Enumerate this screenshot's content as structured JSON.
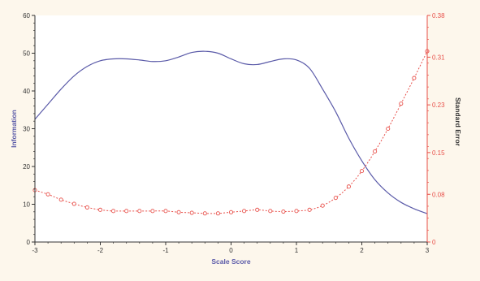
{
  "colors": {
    "background": "#fdf7ec",
    "plot_background": "#ffffff",
    "information": "#5a5aa8",
    "standard_error": "#e8504a",
    "axis": "#333333"
  },
  "chart_data": {
    "type": "line",
    "xlabel": "Scale Score",
    "ylabel_left": "Information",
    "ylabel_right": "Standard Error",
    "xlim": [
      -3,
      3
    ],
    "ylim_left": [
      0,
      60
    ],
    "ylim_right": [
      0,
      0.38
    ],
    "x_ticks": [
      -3,
      -2,
      -1,
      0,
      1,
      2,
      3
    ],
    "x_tick_labels": [
      "-3",
      "-2",
      "-1",
      "0",
      "1",
      "2",
      "3"
    ],
    "y_left_ticks": [
      0,
      10,
      20,
      30,
      40,
      50,
      60
    ],
    "y_left_tick_labels": [
      "0",
      "10",
      "20",
      "30",
      "40",
      "50",
      "60"
    ],
    "y_right_ticks": [
      0,
      0.08,
      0.15,
      0.23,
      0.31,
      0.38
    ],
    "y_right_tick_labels": [
      "0",
      "0.08",
      "0.15",
      "0.23",
      "0.31",
      "0.38"
    ],
    "grid": false,
    "series": [
      {
        "axis": "left",
        "style": "solid",
        "x": [
          -3.0,
          -2.8,
          -2.6,
          -2.4,
          -2.2,
          -2.0,
          -1.8,
          -1.6,
          -1.4,
          -1.2,
          -1.0,
          -0.8,
          -0.6,
          -0.4,
          -0.2,
          0.0,
          0.2,
          0.4,
          0.6,
          0.8,
          1.0,
          1.2,
          1.4,
          1.6,
          1.8,
          2.0,
          2.2,
          2.4,
          2.6,
          2.8,
          3.0
        ],
        "values": [
          32.5,
          36.5,
          40.5,
          44.0,
          46.5,
          48.0,
          48.5,
          48.5,
          48.2,
          47.8,
          48.0,
          49.0,
          50.2,
          50.5,
          50.0,
          48.5,
          47.2,
          47.0,
          47.8,
          48.5,
          48.2,
          46.0,
          40.5,
          34.5,
          27.5,
          21.5,
          16.5,
          13.0,
          10.5,
          8.8,
          7.5
        ]
      },
      {
        "axis": "right",
        "style": "dotted-markers",
        "x": [
          -3.0,
          -2.8,
          -2.6,
          -2.4,
          -2.2,
          -2.0,
          -1.8,
          -1.6,
          -1.4,
          -1.2,
          -1.0,
          -0.8,
          -0.6,
          -0.4,
          -0.2,
          0.0,
          0.2,
          0.4,
          0.6,
          0.8,
          1.0,
          1.2,
          1.4,
          1.6,
          1.8,
          2.0,
          2.2,
          2.4,
          2.6,
          2.8,
          3.0
        ],
        "values": [
          0.087,
          0.08,
          0.071,
          0.064,
          0.058,
          0.054,
          0.052,
          0.052,
          0.052,
          0.052,
          0.052,
          0.05,
          0.049,
          0.048,
          0.048,
          0.05,
          0.052,
          0.054,
          0.052,
          0.051,
          0.052,
          0.054,
          0.061,
          0.074,
          0.093,
          0.119,
          0.152,
          0.19,
          0.232,
          0.275,
          0.32
        ]
      }
    ]
  }
}
